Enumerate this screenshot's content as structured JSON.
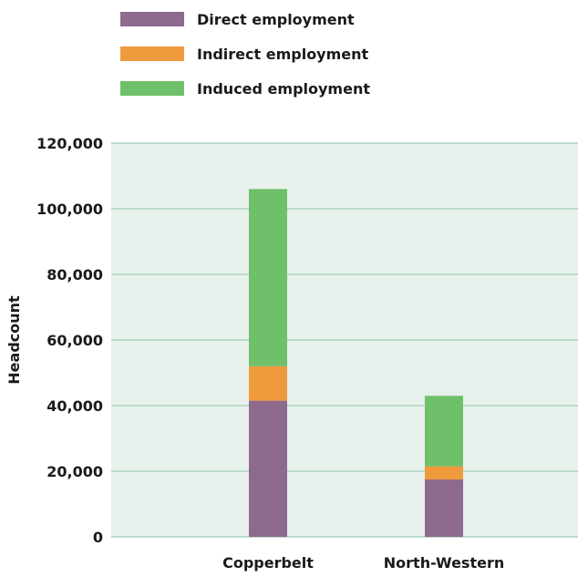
{
  "chart_data": {
    "type": "bar",
    "stacked": true,
    "categories": [
      "Copperbelt",
      "North-Western"
    ],
    "ylabel": "Headcount",
    "xlabel": "",
    "ylim": [
      0,
      120000
    ],
    "yticks": [
      0,
      20000,
      40000,
      60000,
      80000,
      100000,
      120000
    ],
    "ytick_labels": [
      "0",
      "20,000",
      "40,000",
      "60,000",
      "80,000",
      "100,000",
      "120,000"
    ],
    "grid": true,
    "legend_position": "top-left",
    "plot_background": "#e8f1ec",
    "grid_color": "#9fcfb4",
    "series": [
      {
        "name": "Direct employment",
        "color": "#8e6a8e",
        "values": [
          41500,
          17500
        ]
      },
      {
        "name": "Indirect employment",
        "color": "#f09a3e",
        "values": [
          10500,
          4000
        ]
      },
      {
        "name": "Induced employment",
        "color": "#6fc06a",
        "values": [
          54000,
          21500
        ]
      }
    ]
  }
}
